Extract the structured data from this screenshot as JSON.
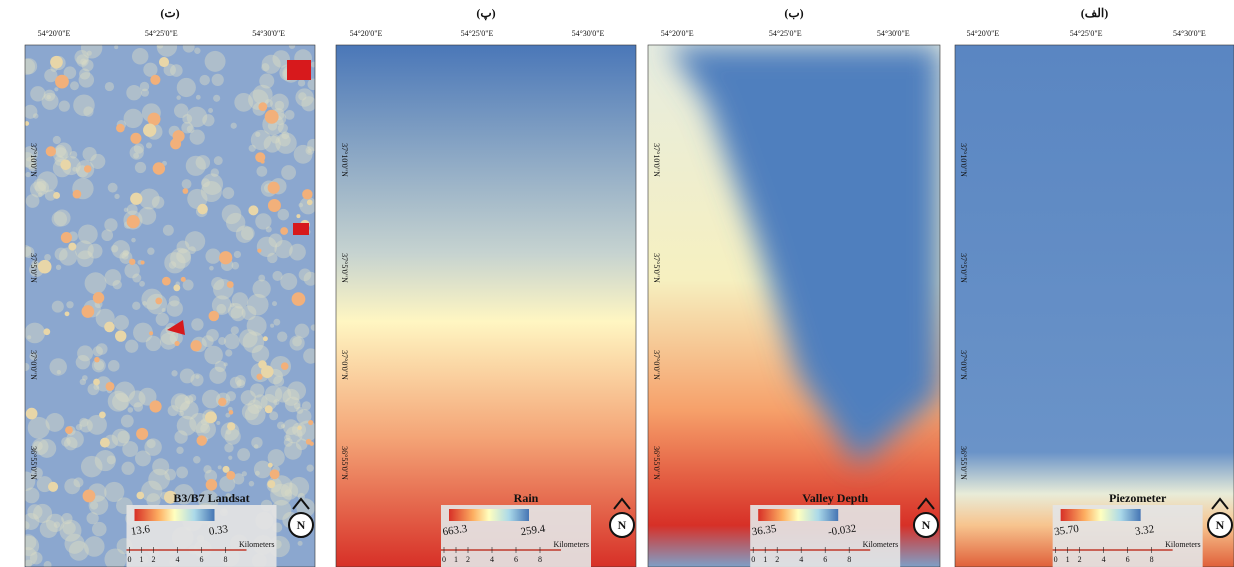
{
  "panels": [
    {
      "label": "(ت)",
      "lon_labels": [
        "54°20'0\"E",
        "54°25'0\"E",
        "54°30'0\"E"
      ],
      "lat_labels": [
        "37°10'0\"N",
        "37°5'0\"N",
        "37°0'0\"N",
        "36°55'0\"N"
      ],
      "legend": {
        "title": "B3/B7 Landsat",
        "high": "13.6",
        "low": "0.33"
      }
    },
    {
      "label": "(پ)",
      "lon_labels": [
        "54°20'0\"E",
        "54°25'0\"E",
        "54°30'0\"E"
      ],
      "lat_labels": [
        "37°10'0\"N",
        "37°5'0\"N",
        "37°0'0\"N",
        "36°55'0\"N"
      ],
      "legend": {
        "title": "Rain",
        "high": "663.3",
        "low": "259.4"
      }
    },
    {
      "label": "(ب)",
      "lon_labels": [
        "54°20'0\"E",
        "54°25'0\"E",
        "54°30'0\"E"
      ],
      "lat_labels": [
        "37°10'0\"N",
        "37°5'0\"N",
        "37°0'0\"N",
        "36°55'0\"N"
      ],
      "legend": {
        "title": "Valley Depth",
        "high": "36.35",
        "low": "-0.032"
      }
    },
    {
      "label": "(الف)",
      "lon_labels": [
        "54°20'0\"E",
        "54°25'0\"E",
        "54°30'0\"E"
      ],
      "lat_labels": [
        "37°10'0\"N",
        "37°5'0\"N",
        "37°0'0\"N",
        "36°55'0\"N"
      ],
      "legend": {
        "title": "Piezometer",
        "high": "35.70",
        "low": "3.32"
      }
    }
  ],
  "scale": {
    "unit": "Kilometers",
    "ticks": [
      "0",
      "1",
      "2",
      "4",
      "6",
      "8"
    ]
  },
  "north": "N"
}
